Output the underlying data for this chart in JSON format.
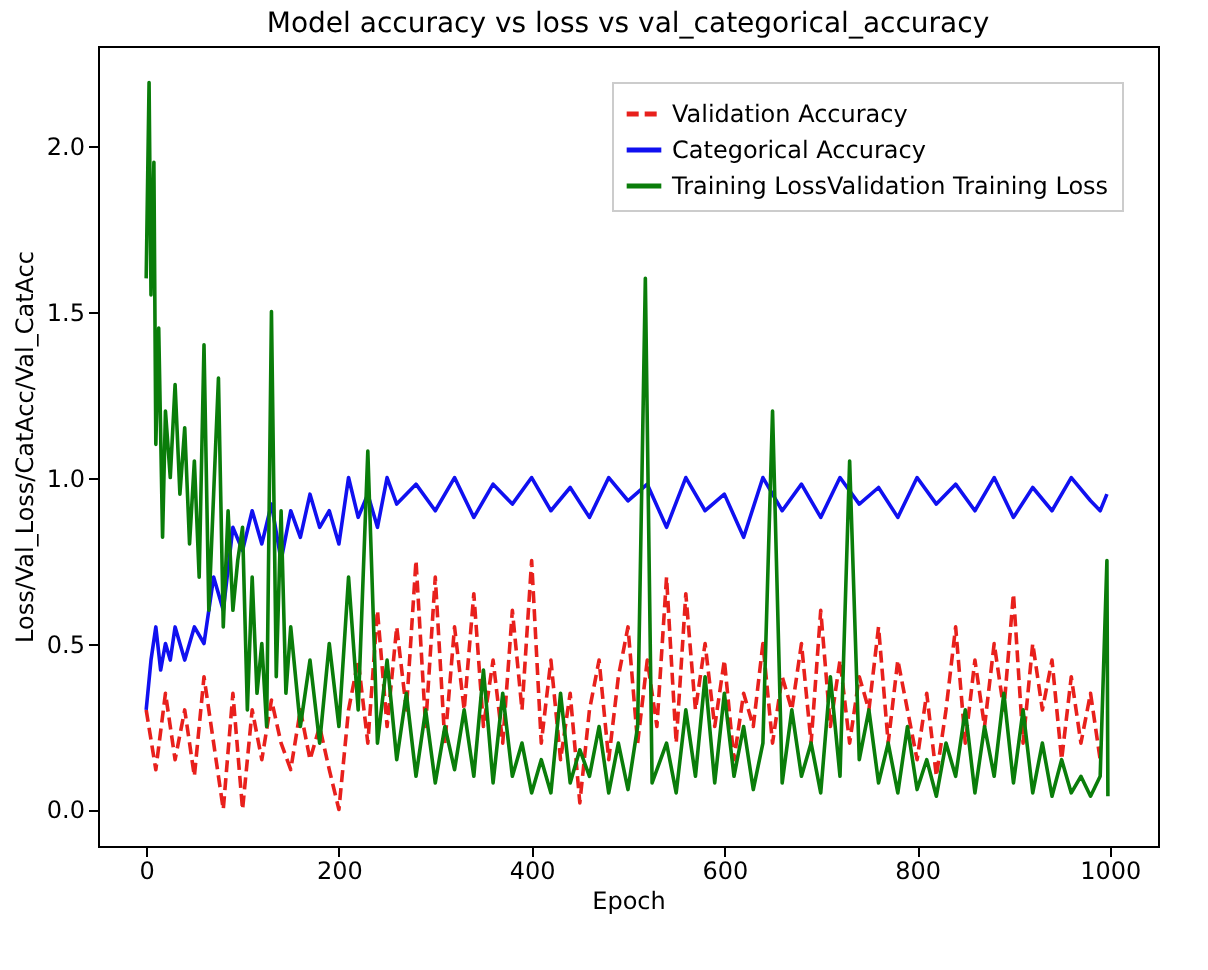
{
  "chart_data": {
    "type": "line",
    "title": "Model accuracy vs loss vs val_categorical_accuracy",
    "xlabel": "Epoch",
    "ylabel": "Loss/Val_Loss/CatAcc/Val_CatAcc",
    "xlim": [
      -50,
      1050
    ],
    "ylim": [
      -0.11,
      2.3
    ],
    "xticks": [
      0,
      200,
      400,
      600,
      800,
      1000
    ],
    "yticks": [
      {
        "value": 0,
        "label": "0.0"
      },
      0.5,
      {
        "value": 1,
        "label": "1.0"
      },
      1.5,
      {
        "value": 2,
        "label": "2.0"
      }
    ],
    "legend": "top right",
    "grid": false,
    "marker": "none",
    "series": [
      {
        "name": "Validation Accuracy",
        "color": "#e8201c",
        "line_style": "dashed",
        "x": [
          0,
          10,
          20,
          30,
          40,
          50,
          60,
          70,
          80,
          90,
          100,
          110,
          120,
          130,
          140,
          150,
          160,
          170,
          180,
          190,
          200,
          210,
          220,
          230,
          240,
          250,
          260,
          270,
          280,
          290,
          300,
          310,
          320,
          330,
          340,
          350,
          360,
          370,
          380,
          390,
          400,
          410,
          420,
          430,
          440,
          450,
          460,
          470,
          480,
          490,
          500,
          510,
          520,
          530,
          540,
          550,
          560,
          570,
          580,
          590,
          600,
          610,
          620,
          630,
          640,
          650,
          660,
          670,
          680,
          690,
          700,
          710,
          720,
          730,
          740,
          750,
          760,
          770,
          780,
          790,
          800,
          810,
          820,
          830,
          840,
          850,
          860,
          870,
          880,
          890,
          900,
          910,
          920,
          930,
          940,
          950,
          960,
          970,
          980,
          990
        ],
        "values": [
          0.3,
          0.12,
          0.35,
          0.15,
          0.3,
          0.1,
          0.4,
          0.2,
          0.0,
          0.35,
          0.0,
          0.3,
          0.15,
          0.33,
          0.2,
          0.12,
          0.3,
          0.15,
          0.25,
          0.12,
          0.0,
          0.3,
          0.45,
          0.2,
          0.6,
          0.25,
          0.55,
          0.3,
          0.75,
          0.25,
          0.7,
          0.2,
          0.55,
          0.3,
          0.65,
          0.25,
          0.45,
          0.2,
          0.6,
          0.3,
          0.75,
          0.2,
          0.45,
          0.15,
          0.35,
          0.02,
          0.3,
          0.45,
          0.15,
          0.4,
          0.55,
          0.2,
          0.45,
          0.25,
          0.7,
          0.2,
          0.65,
          0.3,
          0.5,
          0.25,
          0.45,
          0.15,
          0.35,
          0.25,
          0.5,
          0.2,
          0.4,
          0.3,
          0.5,
          0.2,
          0.6,
          0.25,
          0.45,
          0.2,
          0.4,
          0.3,
          0.55,
          0.2,
          0.45,
          0.3,
          0.15,
          0.35,
          0.1,
          0.3,
          0.55,
          0.2,
          0.45,
          0.25,
          0.5,
          0.3,
          0.65,
          0.2,
          0.5,
          0.3,
          0.45,
          0.15,
          0.4,
          0.2,
          0.35,
          0.15
        ]
      },
      {
        "name": "Categorical Accuracy",
        "color": "#1010f0",
        "line_style": "solid",
        "x": [
          0,
          5,
          10,
          15,
          20,
          25,
          30,
          40,
          50,
          60,
          70,
          80,
          90,
          100,
          110,
          120,
          130,
          140,
          150,
          160,
          170,
          180,
          190,
          200,
          210,
          220,
          230,
          240,
          250,
          260,
          280,
          300,
          320,
          340,
          360,
          380,
          400,
          420,
          440,
          460,
          480,
          500,
          520,
          540,
          560,
          580,
          600,
          620,
          640,
          660,
          680,
          700,
          720,
          740,
          760,
          780,
          800,
          820,
          840,
          860,
          880,
          900,
          920,
          940,
          960,
          980,
          990,
          997
        ],
        "values": [
          0.3,
          0.45,
          0.55,
          0.42,
          0.5,
          0.45,
          0.55,
          0.45,
          0.55,
          0.5,
          0.7,
          0.6,
          0.85,
          0.78,
          0.9,
          0.8,
          0.92,
          0.75,
          0.9,
          0.82,
          0.95,
          0.85,
          0.9,
          0.8,
          1.0,
          0.88,
          0.95,
          0.85,
          1.0,
          0.92,
          0.98,
          0.9,
          1.0,
          0.88,
          0.98,
          0.92,
          1.0,
          0.9,
          0.97,
          0.88,
          1.0,
          0.93,
          0.98,
          0.85,
          1.0,
          0.9,
          0.95,
          0.82,
          1.0,
          0.9,
          0.98,
          0.88,
          1.0,
          0.92,
          0.97,
          0.88,
          1.0,
          0.92,
          0.98,
          0.9,
          1.0,
          0.88,
          0.97,
          0.9,
          1.0,
          0.93,
          0.9,
          0.95
        ]
      },
      {
        "name": "Training LossValidation Training Loss",
        "color": "#0a7d0a",
        "line_style": "solid",
        "x": [
          0,
          3,
          5,
          8,
          10,
          13,
          17,
          20,
          25,
          30,
          35,
          40,
          45,
          50,
          55,
          60,
          65,
          70,
          75,
          80,
          85,
          90,
          95,
          100,
          105,
          110,
          115,
          120,
          125,
          130,
          135,
          140,
          145,
          150,
          160,
          170,
          180,
          190,
          200,
          210,
          220,
          230,
          240,
          250,
          260,
          270,
          280,
          290,
          300,
          310,
          320,
          330,
          340,
          350,
          360,
          370,
          380,
          390,
          400,
          410,
          420,
          430,
          440,
          450,
          460,
          470,
          480,
          490,
          500,
          510,
          518,
          525,
          540,
          550,
          560,
          570,
          580,
          590,
          600,
          610,
          620,
          630,
          640,
          650,
          660,
          670,
          680,
          690,
          700,
          710,
          720,
          730,
          740,
          750,
          760,
          770,
          780,
          790,
          800,
          810,
          820,
          830,
          840,
          850,
          860,
          870,
          880,
          890,
          900,
          910,
          920,
          930,
          940,
          950,
          960,
          970,
          980,
          990,
          997,
          998
        ],
        "values": [
          1.6,
          2.19,
          1.55,
          1.95,
          1.1,
          1.45,
          0.82,
          1.2,
          1.0,
          1.28,
          0.95,
          1.15,
          0.8,
          1.05,
          0.7,
          1.4,
          0.6,
          0.95,
          1.3,
          0.55,
          0.9,
          0.6,
          0.75,
          0.85,
          0.3,
          0.7,
          0.35,
          0.5,
          0.25,
          1.5,
          0.4,
          0.9,
          0.35,
          0.55,
          0.25,
          0.45,
          0.2,
          0.5,
          0.25,
          0.7,
          0.3,
          1.08,
          0.2,
          0.45,
          0.15,
          0.35,
          0.1,
          0.3,
          0.08,
          0.25,
          0.12,
          0.3,
          0.1,
          0.42,
          0.08,
          0.35,
          0.1,
          0.2,
          0.05,
          0.15,
          0.05,
          0.35,
          0.08,
          0.18,
          0.1,
          0.25,
          0.05,
          0.2,
          0.06,
          0.25,
          1.6,
          0.08,
          0.2,
          0.05,
          0.3,
          0.1,
          0.4,
          0.08,
          0.35,
          0.1,
          0.25,
          0.06,
          0.2,
          1.2,
          0.08,
          0.3,
          0.1,
          0.2,
          0.05,
          0.4,
          0.1,
          1.05,
          0.15,
          0.3,
          0.08,
          0.2,
          0.05,
          0.25,
          0.06,
          0.15,
          0.04,
          0.2,
          0.1,
          0.3,
          0.05,
          0.25,
          0.1,
          0.35,
          0.08,
          0.3,
          0.05,
          0.2,
          0.04,
          0.15,
          0.05,
          0.1,
          0.04,
          0.1,
          0.75,
          0.04
        ]
      }
    ]
  }
}
